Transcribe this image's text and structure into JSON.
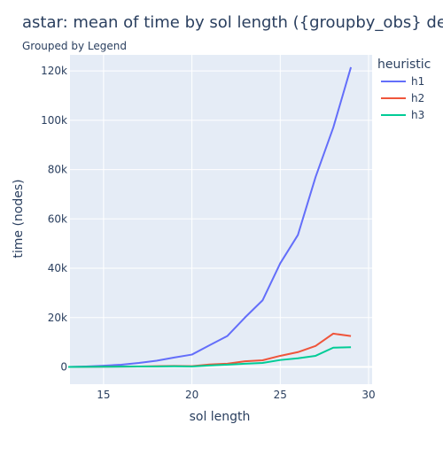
{
  "chart_data": {
    "type": "line",
    "title": "astar: mean of time   by sol length ({groupby_obs} demo",
    "subtitle": "Grouped by Legend",
    "xlabel": "sol length",
    "ylabel": "time (nodes)",
    "xlim": [
      13.1,
      30.2
    ],
    "ylim": [
      -7000,
      126500
    ],
    "xticks": [
      15,
      20,
      25,
      30
    ],
    "xtick_labels": [
      "15",
      "20",
      "25",
      "30"
    ],
    "yticks": [
      0,
      20000,
      40000,
      60000,
      80000,
      100000,
      120000
    ],
    "ytick_labels": [
      "0",
      "20k",
      "40k",
      "60k",
      "80k",
      "100k",
      "120k"
    ],
    "grid": true,
    "plot_background": "#e5ecf6",
    "legend": {
      "title": "heuristic",
      "position": "right"
    },
    "series": [
      {
        "name": "h1",
        "color": "#636efa",
        "x": [
          13,
          14,
          15,
          16,
          17,
          18,
          19,
          20,
          21,
          22,
          23,
          24,
          25,
          26,
          27,
          28,
          29
        ],
        "y": [
          0,
          200,
          500,
          900,
          1600,
          2500,
          3800,
          5000,
          8800,
          12500,
          20000,
          27000,
          42000,
          53500,
          77000,
          97000,
          121500
        ]
      },
      {
        "name": "h2",
        "color": "#ef553b",
        "x": [
          13,
          14,
          15,
          16,
          17,
          18,
          19,
          20,
          21,
          22,
          23,
          24,
          25,
          26,
          27,
          28,
          29
        ],
        "y": [
          0,
          50,
          100,
          150,
          200,
          300,
          400,
          300,
          1000,
          1300,
          2300,
          2700,
          4500,
          6000,
          8500,
          13500,
          12500
        ]
      },
      {
        "name": "h3",
        "color": "#00cc96",
        "x": [
          13,
          14,
          15,
          16,
          17,
          18,
          19,
          20,
          21,
          22,
          23,
          24,
          25,
          26,
          27,
          28,
          29
        ],
        "y": [
          0,
          40,
          80,
          120,
          160,
          200,
          250,
          200,
          600,
          900,
          1300,
          1600,
          2800,
          3500,
          4500,
          7800,
          8000
        ]
      }
    ]
  }
}
